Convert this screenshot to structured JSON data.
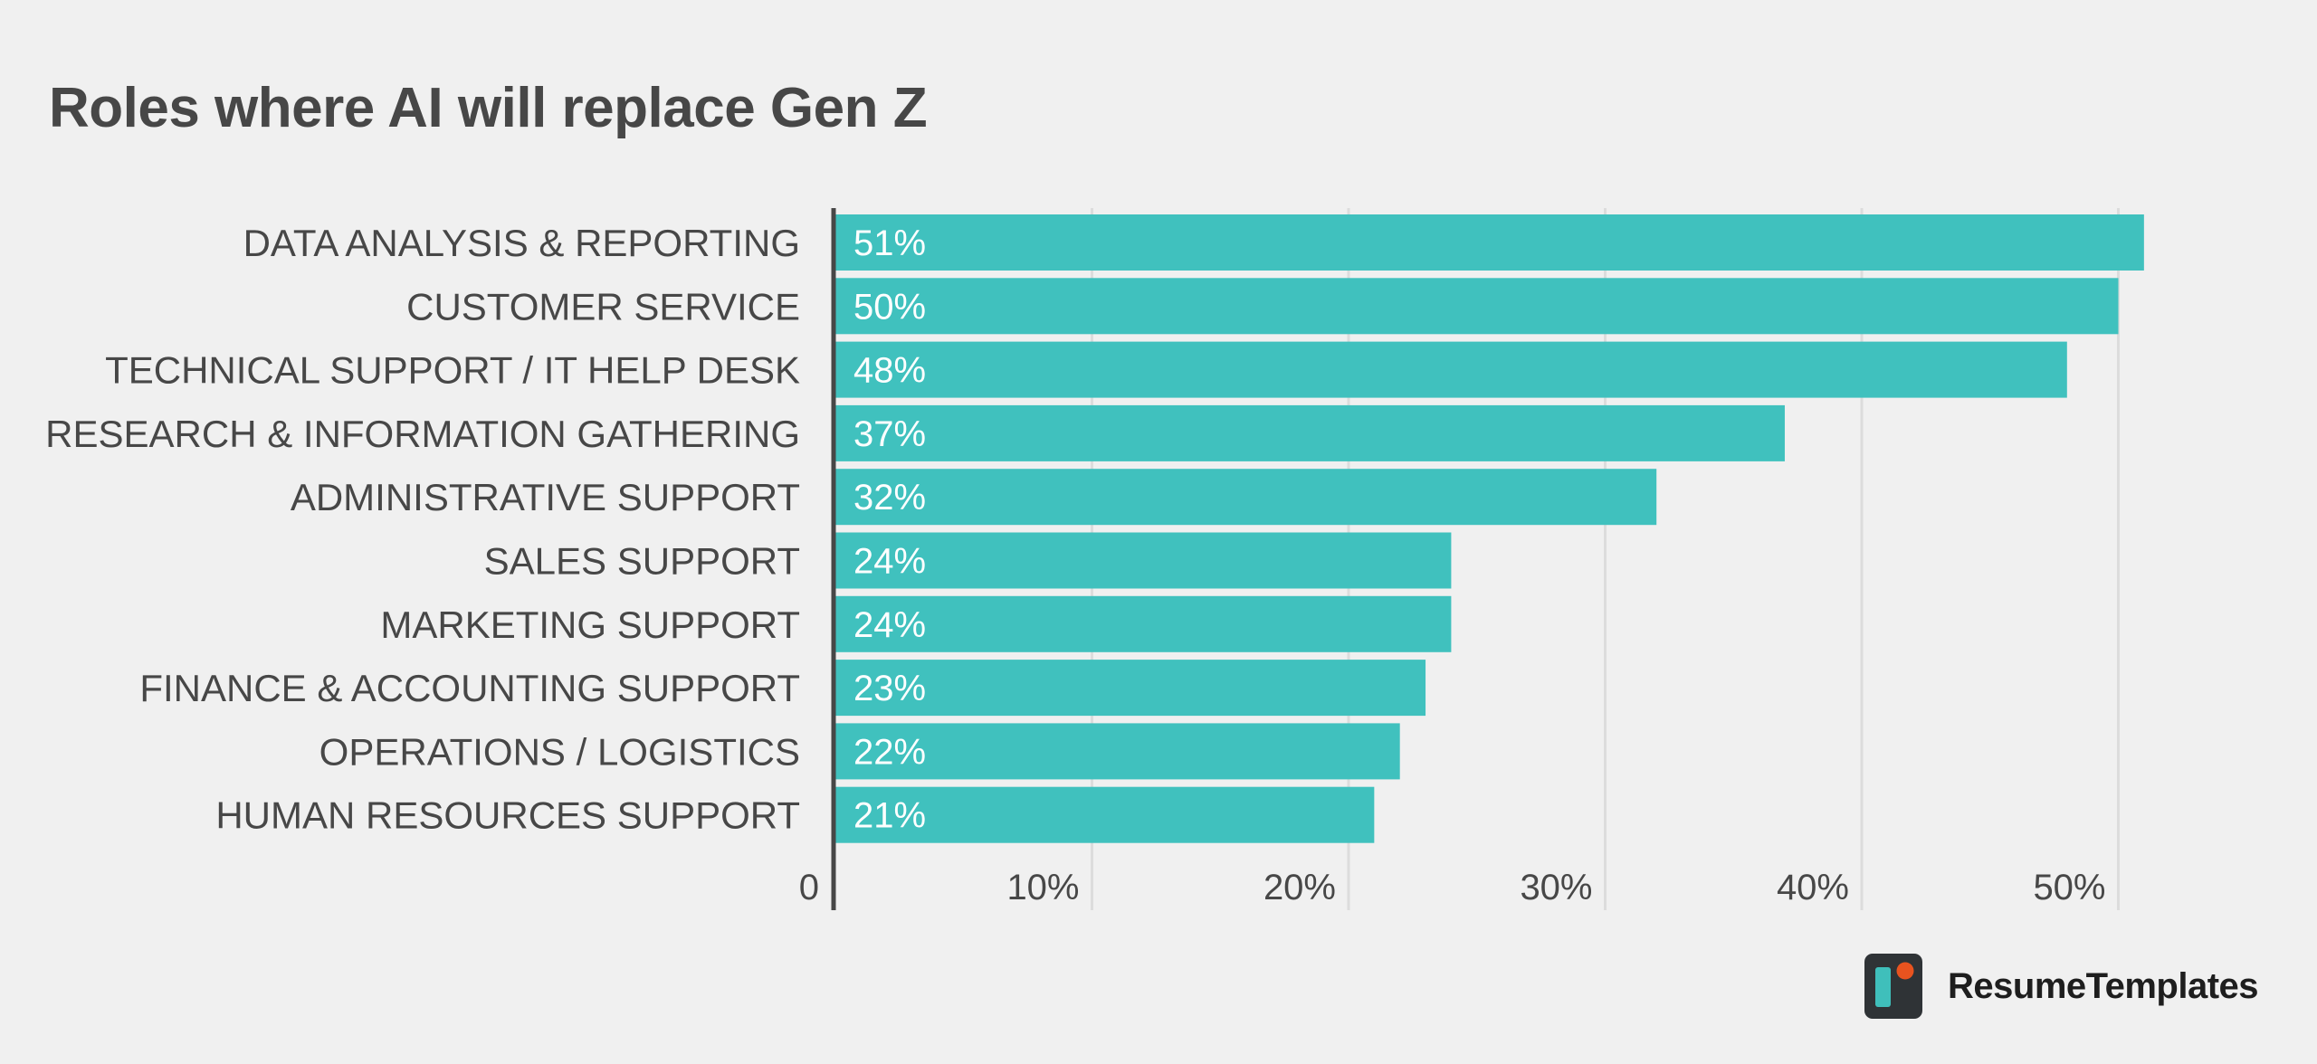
{
  "brand": {
    "name": "ResumeTemplates",
    "logo_color": "#2f3336",
    "logo_accent": "#e8531f",
    "logo_bar": "#3fbfbb"
  },
  "chart_data": {
    "type": "bar",
    "orientation": "horizontal",
    "title": "Roles where AI will replace Gen Z",
    "xlabel": "",
    "ylabel": "",
    "categories": [
      "DATA ANALYSIS & REPORTING",
      "CUSTOMER SERVICE",
      "TECHNICAL SUPPORT / IT HELP DESK",
      "RESEARCH & INFORMATION GATHERING",
      "ADMINISTRATIVE SUPPORT",
      "SALES SUPPORT",
      "MARKETING SUPPORT",
      "FINANCE & ACCOUNTING SUPPORT",
      "OPERATIONS / LOGISTICS",
      "HUMAN RESOURCES SUPPORT"
    ],
    "values": [
      51,
      50,
      48,
      37,
      32,
      24,
      24,
      23,
      22,
      21
    ],
    "value_labels": [
      "51%",
      "50%",
      "48%",
      "37%",
      "32%",
      "24%",
      "24%",
      "23%",
      "22%",
      "21%"
    ],
    "xlim": [
      0,
      52
    ],
    "ticks": [
      0,
      10,
      20,
      30,
      40,
      50
    ],
    "tick_labels": [
      "0",
      "10%",
      "20%",
      "30%",
      "40%",
      "50%"
    ],
    "grid": true,
    "legend": "none",
    "bar_color": "#40c1be",
    "text_color": "#474747",
    "background": "#f0f0f0"
  }
}
